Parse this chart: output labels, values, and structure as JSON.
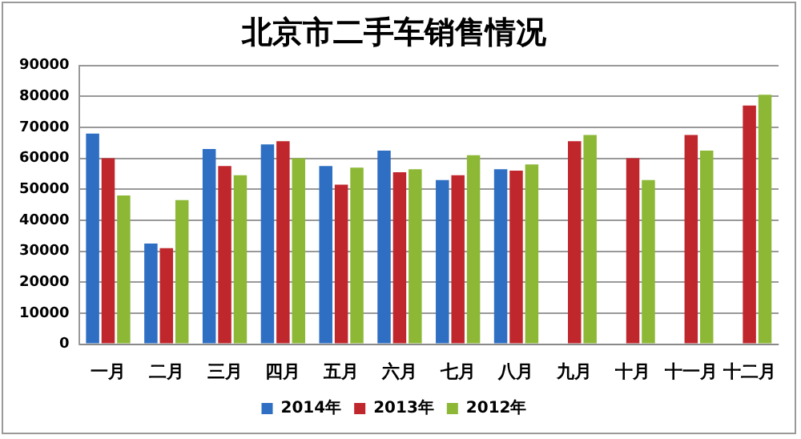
{
  "chart_data": {
    "type": "bar",
    "title": "北京市二手车销售情况",
    "categories": [
      "一月",
      "二月",
      "三月",
      "四月",
      "五月",
      "六月",
      "七月",
      "八月",
      "九月",
      "十月",
      "十一月",
      "十二月"
    ],
    "series": [
      {
        "name": "2014年",
        "color": "#2e6fc4",
        "values": [
          68000,
          32500,
          63000,
          64500,
          57500,
          62500,
          53000,
          56500,
          null,
          null,
          null,
          null
        ]
      },
      {
        "name": "2013年",
        "color": "#c0272d",
        "values": [
          60000,
          31000,
          57500,
          65500,
          51500,
          55500,
          54500,
          56000,
          65500,
          60000,
          67500,
          77000
        ]
      },
      {
        "name": "2012年",
        "color": "#8db836",
        "values": [
          48000,
          46500,
          54500,
          60000,
          57000,
          56500,
          61000,
          58000,
          67500,
          53000,
          62500,
          80500
        ]
      }
    ],
    "ylim": [
      0,
      90000
    ],
    "yticks": [
      0,
      10000,
      20000,
      30000,
      40000,
      50000,
      60000,
      70000,
      80000,
      90000
    ],
    "grid": "y",
    "legend": "bottom"
  }
}
